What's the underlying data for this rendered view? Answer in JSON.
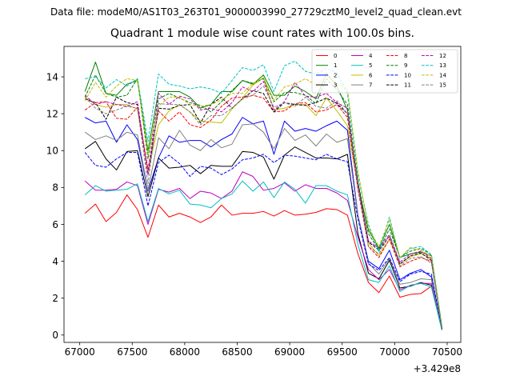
{
  "figure": {
    "suptitle": "Data file: modeM0/AS1T03_263T01_9000003990_27729cztM0_level2_quad_clean.evt",
    "title": "Quadrant 1 module wise count rates with 100.0s bins.",
    "x_offset_label": "+3.429e8"
  },
  "chart_data": {
    "type": "line",
    "title": "Quadrant 1 module wise count rates with 100.0s bins.",
    "xlabel": "",
    "ylabel": "",
    "x_offset": "+3.429e8",
    "xlim": [
      66850,
      70630
    ],
    "ylim": [
      -0.4,
      15.65
    ],
    "xticks": [
      67000,
      67500,
      68000,
      68500,
      69000,
      69500,
      70000,
      70500
    ],
    "yticks": [
      0,
      2,
      4,
      6,
      8,
      10,
      12,
      14
    ],
    "legend_position": "top-right",
    "grid": false,
    "x": [
      67050,
      67150,
      67250,
      67350,
      67450,
      67550,
      67650,
      67750,
      67850,
      67950,
      68050,
      68150,
      68250,
      68350,
      68450,
      68550,
      68650,
      68750,
      68850,
      68950,
      69050,
      69150,
      69250,
      69350,
      69450,
      69550,
      69650,
      69750,
      69850,
      69950,
      70050,
      70150,
      70250,
      70350,
      70450
    ],
    "series": [
      {
        "name": "0",
        "color": "#ff0000",
        "dash": "solid",
        "values": [
          6.6,
          7.1,
          6.15,
          6.65,
          7.6,
          6.8,
          5.3,
          7.05,
          6.4,
          6.6,
          6.4,
          6.1,
          6.4,
          7.05,
          6.5,
          6.6,
          6.6,
          6.7,
          6.45,
          6.75,
          6.5,
          6.55,
          6.65,
          6.85,
          6.8,
          6.5,
          4.4,
          2.85,
          2.3,
          3.2,
          2.05,
          2.2,
          2.25,
          2.65,
          0.3
        ]
      },
      {
        "name": "1",
        "color": "#008000",
        "dash": "solid",
        "values": [
          13.2,
          14.8,
          13.1,
          13.0,
          13.6,
          13.8,
          10.0,
          13.2,
          13.2,
          13.2,
          12.9,
          12.3,
          12.5,
          13.2,
          13.2,
          13.8,
          13.6,
          14.1,
          13.0,
          13.0,
          13.5,
          13.2,
          12.8,
          14.2,
          13.5,
          12.2,
          8.0,
          5.7,
          4.7,
          6.0,
          4.2,
          4.4,
          4.5,
          4.3,
          0.45
        ]
      },
      {
        "name": "2",
        "color": "#0000ff",
        "dash": "solid",
        "values": [
          11.8,
          11.5,
          11.6,
          10.45,
          11.4,
          10.6,
          7.8,
          9.6,
          10.8,
          10.45,
          10.55,
          10.55,
          10.2,
          10.6,
          10.9,
          11.8,
          11.45,
          11.6,
          9.8,
          11.6,
          11.05,
          11.2,
          11.05,
          11.35,
          11.6,
          11.1,
          6.5,
          4.0,
          3.6,
          4.6,
          3.0,
          3.35,
          3.55,
          3.15,
          0.35
        ]
      },
      {
        "name": "3",
        "color": "#000000",
        "dash": "solid",
        "values": [
          10.1,
          10.5,
          9.55,
          8.95,
          9.95,
          10.0,
          7.5,
          9.6,
          9.05,
          9.1,
          9.2,
          8.75,
          9.2,
          9.15,
          9.15,
          9.95,
          9.9,
          9.65,
          8.45,
          9.75,
          10.2,
          9.9,
          9.6,
          9.6,
          9.55,
          9.8,
          5.5,
          3.35,
          3.05,
          4.05,
          2.55,
          2.65,
          2.85,
          2.7,
          0.3
        ]
      },
      {
        "name": "4",
        "color": "#c000c0",
        "dash": "solid",
        "values": [
          8.35,
          7.85,
          7.85,
          7.9,
          8.3,
          8.1,
          6.0,
          7.9,
          7.75,
          7.95,
          7.4,
          7.8,
          7.7,
          7.4,
          7.8,
          8.85,
          8.6,
          7.85,
          7.95,
          8.25,
          7.8,
          8.15,
          7.95,
          7.95,
          7.7,
          7.3,
          5.3,
          3.55,
          3.0,
          3.55,
          2.45,
          2.7,
          2.8,
          2.8,
          0.3
        ]
      },
      {
        "name": "5",
        "color": "#00c0c0",
        "dash": "solid",
        "values": [
          7.6,
          8.1,
          7.8,
          7.85,
          7.9,
          8.2,
          6.15,
          7.95,
          7.65,
          7.85,
          7.1,
          7.05,
          6.9,
          7.4,
          7.65,
          8.35,
          7.8,
          8.3,
          7.45,
          8.3,
          7.9,
          7.15,
          8.1,
          8.1,
          7.8,
          7.6,
          4.9,
          3.0,
          2.85,
          3.75,
          2.35,
          2.7,
          2.8,
          2.6,
          0.25
        ]
      },
      {
        "name": "6",
        "color": "#bfbf00",
        "dash": "solid",
        "values": [
          12.9,
          12.5,
          12.35,
          12.5,
          12.5,
          12.25,
          8.9,
          11.4,
          12.15,
          12.5,
          12.1,
          11.6,
          11.55,
          11.5,
          12.25,
          12.85,
          13.55,
          13.95,
          12.2,
          12.3,
          12.5,
          12.5,
          11.9,
          12.85,
          12.15,
          11.35,
          8.05,
          5.0,
          4.3,
          5.2,
          3.85,
          4.25,
          4.4,
          4.15,
          0.4
        ]
      },
      {
        "name": "7",
        "color": "#808080",
        "dash": "solid",
        "values": [
          11.0,
          10.6,
          10.8,
          10.55,
          11.0,
          10.85,
          7.85,
          10.7,
          10.1,
          11.1,
          10.3,
          10.0,
          10.6,
          10.15,
          10.35,
          11.4,
          11.45,
          11.0,
          10.1,
          11.2,
          10.55,
          10.85,
          10.25,
          10.9,
          10.45,
          10.65,
          6.45,
          3.9,
          3.3,
          4.15,
          2.75,
          2.85,
          3.05,
          3.0,
          0.35
        ]
      },
      {
        "name": "8",
        "color": "#ff0000",
        "dash": "dashed",
        "values": [
          12.2,
          12.6,
          12.65,
          11.75,
          11.7,
          12.35,
          9.0,
          12.15,
          11.6,
          12.1,
          11.4,
          11.25,
          11.65,
          12.4,
          12.85,
          12.9,
          13.0,
          12.85,
          12.1,
          12.15,
          12.55,
          12.6,
          12.1,
          12.2,
          12.5,
          11.8,
          7.9,
          4.8,
          4.2,
          5.2,
          3.7,
          4.0,
          4.2,
          4.0,
          0.4
        ]
      },
      {
        "name": "9",
        "color": "#008000",
        "dash": "dashed",
        "values": [
          12.9,
          14.1,
          13.1,
          12.9,
          13.0,
          13.9,
          9.55,
          12.8,
          13.1,
          12.85,
          12.6,
          12.45,
          12.1,
          12.65,
          13.25,
          13.8,
          13.65,
          13.9,
          12.65,
          13.15,
          13.15,
          13.0,
          12.55,
          13.9,
          13.3,
          12.5,
          8.3,
          5.5,
          4.6,
          5.75,
          4.2,
          4.55,
          4.7,
          4.35,
          0.45
        ]
      },
      {
        "name": "10",
        "color": "#0000ff",
        "dash": "dashed",
        "values": [
          9.9,
          9.2,
          9.1,
          9.55,
          9.9,
          9.9,
          7.0,
          9.35,
          9.75,
          9.3,
          8.6,
          9.15,
          9.05,
          8.7,
          9.0,
          9.5,
          9.6,
          9.8,
          9.35,
          9.75,
          9.7,
          9.6,
          9.5,
          9.8,
          9.55,
          9.4,
          6.3,
          3.85,
          3.5,
          4.2,
          2.9,
          3.3,
          3.45,
          3.3,
          0.35
        ]
      },
      {
        "name": "11",
        "color": "#000000",
        "dash": "dashed",
        "values": [
          12.8,
          12.6,
          11.7,
          12.9,
          12.6,
          12.5,
          8.7,
          12.3,
          12.25,
          12.45,
          12.5,
          11.5,
          12.5,
          12.9,
          12.3,
          12.8,
          13.25,
          13.1,
          12.1,
          12.6,
          12.5,
          12.45,
          12.6,
          12.85,
          12.55,
          12.0,
          8.25,
          5.05,
          4.6,
          5.35,
          3.85,
          4.3,
          4.45,
          4.05,
          0.4
        ]
      },
      {
        "name": "12",
        "color": "#c000c0",
        "dash": "dashed",
        "values": [
          13.0,
          12.5,
          12.65,
          12.5,
          12.4,
          12.65,
          8.7,
          13.1,
          12.5,
          12.95,
          12.8,
          12.2,
          12.3,
          12.1,
          12.6,
          13.45,
          13.2,
          13.75,
          12.2,
          12.65,
          13.7,
          12.95,
          12.9,
          13.1,
          12.6,
          12.3,
          8.05,
          5.1,
          4.7,
          5.45,
          3.95,
          4.4,
          4.55,
          4.15,
          0.4
        ]
      },
      {
        "name": "13",
        "color": "#00c0c0",
        "dash": "dashed",
        "values": [
          13.9,
          14.0,
          13.4,
          13.85,
          13.5,
          13.9,
          10.5,
          14.15,
          13.6,
          13.5,
          13.35,
          13.45,
          13.35,
          13.1,
          13.8,
          14.5,
          14.35,
          14.65,
          13.2,
          14.6,
          14.85,
          14.3,
          14.15,
          14.45,
          14.2,
          13.1,
          8.65,
          6.0,
          4.5,
          6.4,
          4.15,
          4.7,
          4.8,
          4.35,
          0.45
        ]
      },
      {
        "name": "14",
        "color": "#bfbf00",
        "dash": "dashed",
        "values": [
          12.7,
          13.7,
          12.9,
          13.5,
          13.9,
          13.8,
          9.8,
          12.4,
          12.9,
          12.9,
          12.5,
          12.4,
          12.5,
          12.75,
          13.1,
          13.1,
          13.65,
          13.95,
          12.75,
          13.45,
          13.6,
          13.9,
          13.55,
          14.05,
          13.6,
          13.35,
          8.9,
          5.8,
          4.8,
          6.25,
          4.2,
          4.75,
          4.6,
          4.25,
          0.4
        ]
      },
      {
        "name": "15",
        "color": "#808080",
        "dash": "dashed",
        "values": [
          12.9,
          12.3,
          12.0,
          12.2,
          12.4,
          12.3,
          8.2,
          12.55,
          12.5,
          12.5,
          12.1,
          11.4,
          11.9,
          11.9,
          12.3,
          12.8,
          13.0,
          13.5,
          12.35,
          12.6,
          12.4,
          12.9,
          12.4,
          12.3,
          12.7,
          12.0,
          8.1,
          4.8,
          4.4,
          5.4,
          3.75,
          4.15,
          4.25,
          3.9,
          0.4
        ]
      }
    ]
  }
}
